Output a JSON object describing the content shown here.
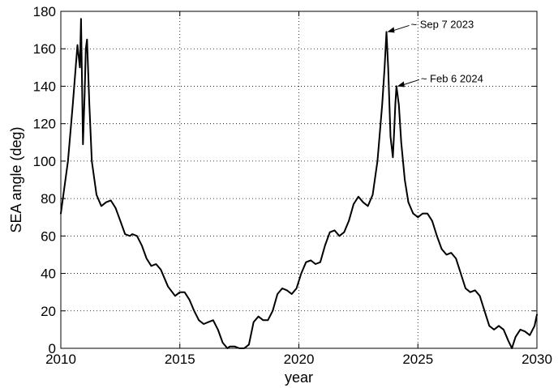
{
  "chart_data": {
    "type": "line",
    "title": "",
    "xlabel": "year",
    "ylabel": "SEA angle (deg)",
    "xlim": [
      2010,
      2030
    ],
    "ylim": [
      0,
      180
    ],
    "xticks": [
      2010,
      2015,
      2020,
      2025,
      2030
    ],
    "yticks": [
      0,
      20,
      40,
      60,
      80,
      100,
      120,
      140,
      160,
      180
    ],
    "grid": true,
    "legend": "none",
    "line_color": "#000000",
    "series": [
      {
        "x": [
          2010.0,
          2010.3,
          2010.5,
          2010.7,
          2010.8,
          2010.85,
          2010.9,
          2010.93,
          2011.0,
          2011.05,
          2011.1,
          2011.2,
          2011.3,
          2011.5,
          2011.7,
          2011.9,
          2012.1,
          2012.3,
          2012.5,
          2012.7,
          2012.9,
          2013.0,
          2013.2,
          2013.4,
          2013.6,
          2013.8,
          2014.0,
          2014.2,
          2014.5,
          2014.8,
          2015.0,
          2015.2,
          2015.4,
          2015.6,
          2015.8,
          2016.0,
          2016.2,
          2016.4,
          2016.6,
          2016.8,
          2017.0,
          2017.1,
          2017.3,
          2017.5,
          2017.7,
          2017.9,
          2018.1,
          2018.3,
          2018.5,
          2018.7,
          2018.9,
          2019.1,
          2019.3,
          2019.5,
          2019.7,
          2019.9,
          2020.1,
          2020.3,
          2020.5,
          2020.7,
          2020.9,
          2021.1,
          2021.3,
          2021.5,
          2021.7,
          2021.9,
          2022.1,
          2022.3,
          2022.5,
          2022.7,
          2022.9,
          2023.1,
          2023.3,
          2023.5,
          2023.6,
          2023.68,
          2023.75,
          2023.85,
          2023.95,
          2024.0,
          2024.05,
          2024.1,
          2024.2,
          2024.3,
          2024.45,
          2024.6,
          2024.8,
          2025.0,
          2025.2,
          2025.4,
          2025.6,
          2025.8,
          2026.0,
          2026.2,
          2026.4,
          2026.6,
          2026.8,
          2027.0,
          2027.2,
          2027.4,
          2027.6,
          2027.8,
          2028.0,
          2028.2,
          2028.4,
          2028.6,
          2028.8,
          2028.95,
          2029.0,
          2029.1,
          2029.3,
          2029.5,
          2029.7,
          2029.9,
          2030.0
        ],
        "values": [
          72,
          100,
          130,
          162,
          150,
          176,
          135,
          109,
          135,
          160,
          165,
          130,
          100,
          82,
          76,
          78,
          79,
          75,
          68,
          61,
          60,
          61,
          60,
          55,
          48,
          44,
          45,
          42,
          33,
          28,
          30,
          30,
          26,
          20,
          15,
          13,
          14,
          15,
          10,
          3,
          0,
          1,
          1,
          0,
          0,
          2,
          14,
          17,
          15,
          15,
          20,
          29,
          32,
          31,
          29,
          32,
          40,
          46,
          47,
          45,
          46,
          55,
          62,
          63,
          60,
          62,
          68,
          77,
          81,
          78,
          76,
          82,
          100,
          130,
          150,
          169,
          150,
          113,
          102,
          115,
          130,
          140,
          130,
          110,
          90,
          78,
          72,
          70,
          72,
          72,
          68,
          60,
          53,
          50,
          51,
          48,
          40,
          32,
          30,
          31,
          28,
          20,
          12,
          10,
          12,
          10,
          4,
          0,
          2,
          6,
          10,
          9,
          7,
          12,
          18
        ]
      }
    ],
    "annotations": [
      {
        "text": "~ Sep 7 2023",
        "x": 2023.68,
        "y": 169
      },
      {
        "text": "~ Feb 6 2024",
        "x": 2024.1,
        "y": 140
      }
    ]
  }
}
